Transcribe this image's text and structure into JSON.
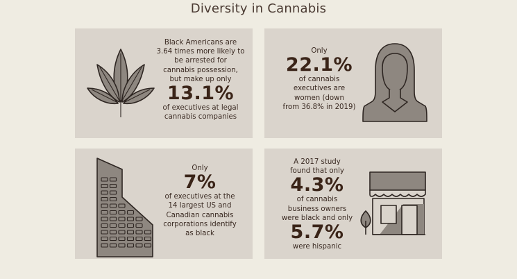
{
  "header": {
    "title": "Diversity in Cannabis"
  },
  "cards": [
    {
      "icon": "cannabis-leaf-icon",
      "lines_before": [
        "Black Americans are",
        "3.64 times more likely to",
        "be arrested for",
        "cannabis possession,",
        "but make up only"
      ],
      "stat": "13.1%",
      "lines_after": [
        "of executives at legal",
        "cannabis companies"
      ]
    },
    {
      "icon": "woman-silhouette-icon",
      "lines_before": [
        "Only"
      ],
      "stat": "22.1%",
      "lines_after": [
        "of cannabis",
        "executives are",
        "women (down",
        "from 36.8% in 2019)"
      ]
    },
    {
      "icon": "office-building-icon",
      "lines_before": [
        "Only"
      ],
      "stat": "7%",
      "lines_after": [
        "of executives at the",
        "14 largest US and",
        "Canadian cannabis",
        "corporations identify",
        "as black"
      ]
    },
    {
      "icon": "storefront-icon",
      "lines_before": [
        "A 2017 study",
        "found that only"
      ],
      "stat": "4.3%",
      "lines_middle": [
        "of cannabis",
        "business owners",
        "were black and only"
      ],
      "stat2": "5.7%",
      "lines_after": [
        "were hispanic"
      ]
    }
  ],
  "colors": {
    "background": "#efece2",
    "card": "#dad4cc",
    "stat_text": "#3a2418",
    "icon_fill": "#8e8780",
    "icon_stroke": "#2e2622"
  }
}
